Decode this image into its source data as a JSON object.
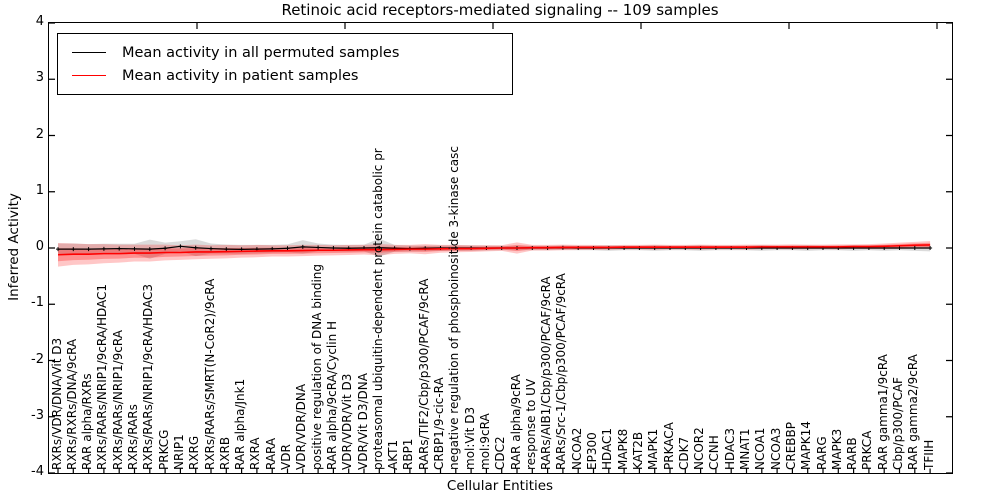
{
  "title": "Retinoic acid receptors-mediated signaling -- 109 samples",
  "legend": {
    "items": [
      {
        "label": "Mean activity in all permuted samples",
        "color": "#000000"
      },
      {
        "label": "Mean activity in patient samples",
        "color": "#ff0000"
      }
    ]
  },
  "axes": {
    "ylabel": "Inferred Activity",
    "xlabel": "Cellular Entities",
    "yticks": [
      "4",
      "3",
      "2",
      "1",
      "0",
      "-1",
      "-2",
      "-3",
      "-4"
    ],
    "ylim": [
      -4,
      4
    ]
  },
  "chart_data": {
    "type": "line",
    "title": "Retinoic acid receptors-mediated signaling -- 109 samples",
    "xlabel": "Cellular Entities",
    "ylabel": "Inferred Activity",
    "ylim": [
      -4,
      4
    ],
    "x_tick_rotation": 90,
    "legend_position": "upper left",
    "grid": false,
    "categories": [
      "RXRs/VDR/DNA/Vit D3",
      "RXRs/RXRs/DNA/9cRA",
      "RAR alpha/RXRs",
      "RXRs/RARs/NRIP1/9cRA/HDAC1",
      "RXRs/RARs/NRIP1/9cRA",
      "RXRs/RARs",
      "RXRs/RARs/NRIP1/9cRA/HDAC3",
      "PRKCG",
      "NRIP1",
      "RXRG",
      "RXRs/RARs/SMRT(N-CoR2)/9cRA",
      "RXRB",
      "RAR alpha/Jnk1",
      "RXRA",
      "RARA",
      "VDR",
      "VDR/VDR/DNA",
      "positive regulation of DNA binding",
      "RAR alpha/9cRA/Cyclin H",
      "VDR/VDR/Vit D3",
      "VDR/Vit D3/DNA",
      "proteasomal ubiquitin-dependent protein catabolic pr",
      "AKT1",
      "RBP1",
      "RARs/TIF2/Cbp/p300/PCAF/9cRA",
      "CRBP1/9-cic-RA",
      "negative regulation of phosphoinositide 3-kinase casc",
      "mol:Vit D3",
      "mol:9cRA",
      "CDC2",
      "RAR alpha/9cRA",
      "response to UV",
      "RARs/AIB1/Cbp/p300/PCAF/9cRA",
      "RARs/Src-1/Cbp/p300/PCAF/9cRA",
      "NCOA2",
      "EP300",
      "HDAC1",
      "MAPK8",
      "KAT2B",
      "MAPK1",
      "PRKACA",
      "CDK7",
      "NCOR2",
      "CCNH",
      "HDAC3",
      "MNAT1",
      "NCOA1",
      "NCOA3",
      "CREBBP",
      "MAPK14",
      "RARG",
      "MAPK3",
      "RARB",
      "PRKCA",
      "RAR gamma1/9cRA",
      "Cbp/p300/PCAF",
      "RAR gamma2/9cRA",
      "TFIIH"
    ],
    "series": [
      {
        "name": "Mean activity in all permuted samples",
        "color": "#000000",
        "band_color": "#999999",
        "values": [
          -0.02,
          -0.02,
          -0.02,
          -0.015,
          -0.01,
          -0.015,
          -0.02,
          -0.005,
          0.03,
          0.005,
          -0.01,
          -0.02,
          -0.025,
          -0.02,
          -0.015,
          -0.005,
          0.02,
          0.01,
          0,
          -0.005,
          0,
          0.005,
          -0.005,
          -0.01,
          -0.005,
          0,
          0,
          0,
          0,
          0,
          0,
          0,
          0,
          0.005,
          0,
          0,
          0,
          0,
          0,
          0,
          0,
          0,
          0,
          0,
          0,
          0,
          0,
          0,
          0,
          0,
          0,
          0,
          0,
          0,
          0,
          0,
          0,
          0
        ],
        "band_halfwidth": [
          0.1,
          0.1,
          0.09,
          0.09,
          0.085,
          0.09,
          0.17,
          0.1,
          0.09,
          0.15,
          0.09,
          0.08,
          0.08,
          0.075,
          0.07,
          0.07,
          0.12,
          0.07,
          0.06,
          0.06,
          0.06,
          0.16,
          0.06,
          0.055,
          0.05,
          0.05,
          0.05,
          0.05,
          0.045,
          0.04,
          0.04,
          0.04,
          0.04,
          0.04,
          0.04,
          0.04,
          0.05,
          0.04,
          0.04,
          0.05,
          0.04,
          0.04,
          0.05,
          0.04,
          0.04,
          0.04,
          0.05,
          0.04,
          0.04,
          0.05,
          0.04,
          0.04,
          0.05,
          0.04,
          0.05,
          0.04,
          0.05,
          0.06
        ]
      },
      {
        "name": "Mean activity in patient samples",
        "color": "#ff0000",
        "band_color": "#ff0000",
        "values": [
          -0.12,
          -0.11,
          -0.11,
          -0.1,
          -0.1,
          -0.09,
          -0.09,
          -0.08,
          -0.08,
          -0.07,
          -0.07,
          -0.065,
          -0.06,
          -0.055,
          -0.05,
          -0.05,
          -0.045,
          -0.04,
          -0.04,
          -0.035,
          -0.03,
          -0.03,
          -0.025,
          -0.02,
          -0.02,
          -0.015,
          -0.01,
          -0.01,
          -0.005,
          0,
          0,
          0.005,
          0.005,
          0.01,
          0.01,
          0.01,
          0.01,
          0.015,
          0.015,
          0.015,
          0.015,
          0.015,
          0.015,
          0.015,
          0.015,
          0.015,
          0.02,
          0.02,
          0.02,
          0.02,
          0.02,
          0.02,
          0.025,
          0.025,
          0.03,
          0.04,
          0.05,
          0.055
        ],
        "band_halfwidth": [
          0.21,
          0.19,
          0.18,
          0.17,
          0.16,
          0.15,
          0.15,
          0.14,
          0.13,
          0.13,
          0.12,
          0.12,
          0.11,
          0.11,
          0.1,
          0.1,
          0.1,
          0.095,
          0.09,
          0.09,
          0.085,
          0.1,
          0.08,
          0.075,
          0.09,
          0.07,
          0.065,
          0.06,
          0.055,
          0.05,
          0.1,
          0.05,
          0.05,
          0.05,
          0.045,
          0.045,
          0.04,
          0.04,
          0.04,
          0.045,
          0.04,
          0.04,
          0.045,
          0.04,
          0.04,
          0.045,
          0.04,
          0.04,
          0.045,
          0.04,
          0.04,
          0.045,
          0.04,
          0.045,
          0.05,
          0.055,
          0.06,
          0.07
        ]
      }
    ]
  }
}
